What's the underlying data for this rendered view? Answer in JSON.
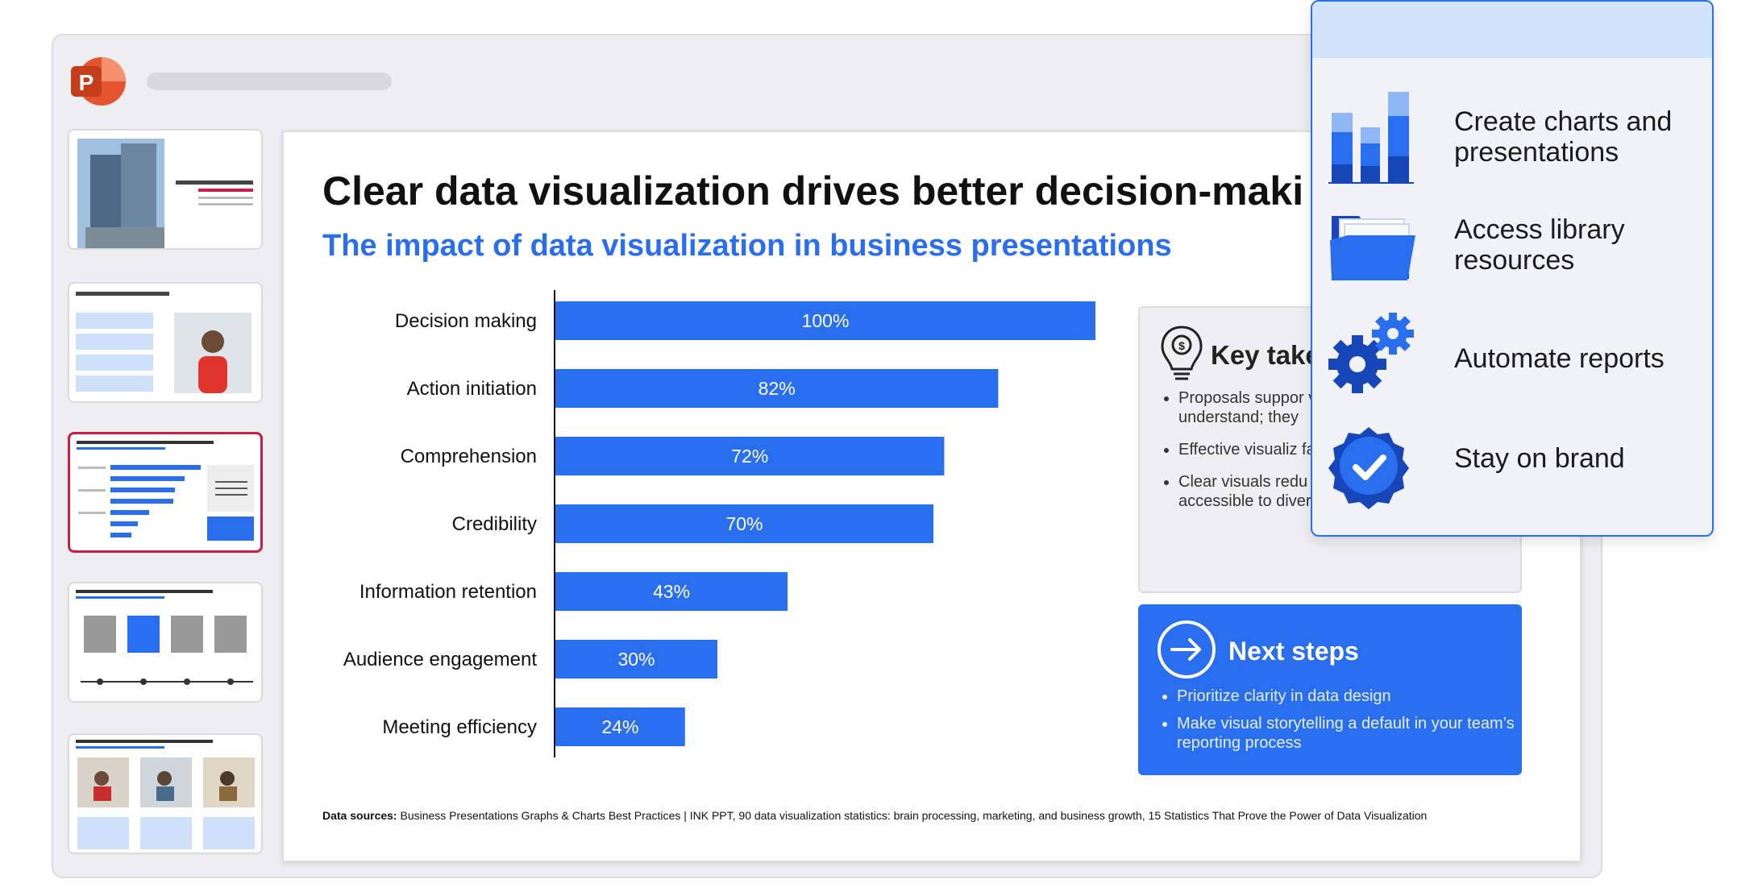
{
  "app": {
    "name": "PowerPoint",
    "logo_letter": "P"
  },
  "slide": {
    "title": "Clear data visualization drives better decision-maki",
    "subtitle": "The impact of data visualization in business presentations",
    "footnote_label": "Data sources:",
    "footnote_text": " Business Presentations Graphs & Charts Best Practices | INK PPT, 90 data visualization statistics: brain processing, marketing, and business growth, 15 Statistics That Prove the Power of Data Visualization"
  },
  "chart_data": {
    "type": "bar",
    "orientation": "horizontal",
    "categories": [
      "Decision making",
      "Action initiation",
      "Comprehension",
      "Credibility",
      "Information retention",
      "Audience engagement",
      "Meeting efficiency"
    ],
    "values": [
      100,
      82,
      72,
      70,
      43,
      30,
      24
    ],
    "value_labels": [
      "100%",
      "82%",
      "72%",
      "70%",
      "43%",
      "30%",
      "24%"
    ],
    "xlim": [
      0,
      100
    ],
    "grid": false,
    "bar_color": "#2a6ef0"
  },
  "key_takeaways": {
    "title": "Key take",
    "items": [
      "Proposals suppor visuals are not or understand; they",
      "Effective visualiz faster decision cy",
      "Clear visuals redu making complex data accessible to diverse audiences"
    ]
  },
  "next_steps": {
    "title": "Next steps",
    "items": [
      "Prioritize clarity in data design",
      "Make visual storytelling a default in your team’s reporting process"
    ]
  },
  "features": [
    {
      "label": "Create charts and presentations",
      "icon": "bar-chart-icon"
    },
    {
      "label": "Access library resources",
      "icon": "folder-icon"
    },
    {
      "label": "Automate reports",
      "icon": "gears-icon"
    },
    {
      "label": "Stay on brand",
      "icon": "badge-check-icon"
    }
  ],
  "colors": {
    "accent": "#2a6ef0",
    "active_thumb": "#c81e4a",
    "popup_header": "#d3e3fb"
  }
}
